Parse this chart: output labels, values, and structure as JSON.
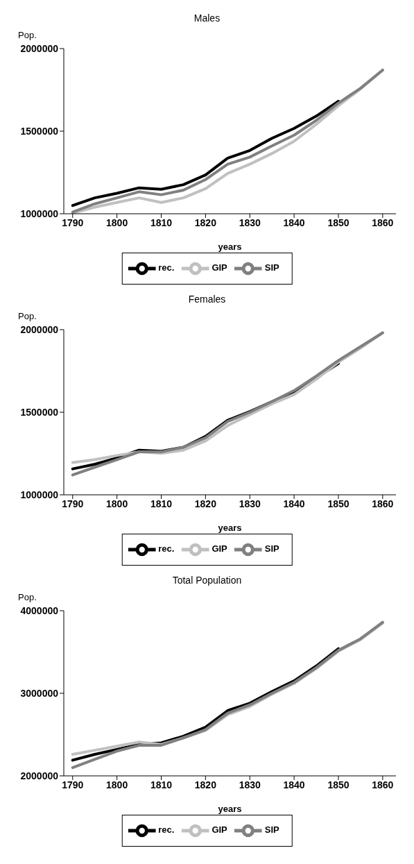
{
  "chart_data": [
    {
      "type": "line",
      "title": "Males",
      "ylabel": "Pop.",
      "xlabel": "years",
      "x": [
        1790,
        1795,
        1800,
        1805,
        1810,
        1815,
        1820,
        1825,
        1830,
        1835,
        1840,
        1845,
        1850,
        1855,
        1860
      ],
      "xlim": [
        1788,
        1863
      ],
      "xticks": [
        1790,
        1800,
        1810,
        1820,
        1830,
        1840,
        1850,
        1860
      ],
      "ylim": [
        1000000,
        2000000
      ],
      "yticks": [
        1000000,
        1500000,
        2000000
      ],
      "grid": false,
      "legend": "bottom",
      "marker": "none",
      "line_style": "solid",
      "series": [
        {
          "name": "rec.",
          "color": "#000000",
          "values": [
            1050000,
            1096000,
            1124000,
            1157000,
            1148000,
            1176000,
            1235000,
            1337000,
            1383000,
            1457000,
            1517000,
            1591000,
            1681000,
            null,
            null
          ]
        },
        {
          "name": "GIP",
          "color": "#c0c0c0",
          "values": [
            1004000,
            1040000,
            1068000,
            1096000,
            1068000,
            1096000,
            1152000,
            1244000,
            1300000,
            1365000,
            1439000,
            1541000,
            1654000,
            1756000,
            1870000
          ]
        },
        {
          "name": "SIP",
          "color": "#808080",
          "values": [
            1010000,
            1060000,
            1096000,
            1133000,
            1115000,
            1143000,
            1207000,
            1300000,
            1343000,
            1411000,
            1476000,
            1565000,
            1670000,
            1760000,
            1870000
          ]
        }
      ]
    },
    {
      "type": "line",
      "title": "Females",
      "ylabel": "Pop.",
      "xlabel": "years",
      "x": [
        1790,
        1795,
        1800,
        1805,
        1810,
        1815,
        1820,
        1825,
        1830,
        1835,
        1840,
        1845,
        1850,
        1855,
        1860
      ],
      "xlim": [
        1788,
        1863
      ],
      "xticks": [
        1790,
        1800,
        1810,
        1820,
        1830,
        1840,
        1850,
        1860
      ],
      "ylim": [
        1000000,
        2000000
      ],
      "yticks": [
        1000000,
        1500000,
        2000000
      ],
      "grid": false,
      "legend": "bottom",
      "marker": "none",
      "line_style": "solid",
      "series": [
        {
          "name": "rec.",
          "color": "#000000",
          "values": [
            1157000,
            1185000,
            1223000,
            1270000,
            1264000,
            1288000,
            1354000,
            1451000,
            1504000,
            1564000,
            1625000,
            1710000,
            1795000,
            null,
            null
          ]
        },
        {
          "name": "GIP",
          "color": "#c0c0c0",
          "values": [
            1195000,
            1213000,
            1238000,
            1260000,
            1251000,
            1270000,
            1326000,
            1419000,
            1485000,
            1551000,
            1607000,
            1700000,
            1803000,
            1888000,
            1981000
          ]
        },
        {
          "name": "SIP",
          "color": "#808080",
          "values": [
            1120000,
            1167000,
            1213000,
            1260000,
            1260000,
            1288000,
            1345000,
            1444000,
            1500000,
            1564000,
            1631000,
            1719000,
            1813000,
            1897000,
            1981000
          ]
        }
      ]
    },
    {
      "type": "line",
      "title": "Total Population",
      "ylabel": "Pop.",
      "xlabel": "years",
      "x": [
        1790,
        1795,
        1800,
        1805,
        1810,
        1815,
        1820,
        1825,
        1830,
        1835,
        1840,
        1845,
        1850,
        1855,
        1860
      ],
      "xlim": [
        1788,
        1863
      ],
      "xticks": [
        1790,
        1800,
        1810,
        1820,
        1830,
        1840,
        1850,
        1860
      ],
      "ylim": [
        2000000,
        4000000
      ],
      "yticks": [
        2000000,
        3000000,
        4000000
      ],
      "grid": false,
      "legend": "bottom",
      "marker": "none",
      "line_style": "solid",
      "series": [
        {
          "name": "rec.",
          "color": "#000000",
          "values": [
            2190000,
            2260000,
            2320000,
            2380000,
            2400000,
            2480000,
            2590000,
            2790000,
            2880000,
            3020000,
            3150000,
            3330000,
            3540000,
            null,
            null
          ]
        },
        {
          "name": "GIP",
          "color": "#c0c0c0",
          "values": [
            2260000,
            2310000,
            2360000,
            2410000,
            2380000,
            2460000,
            2550000,
            2740000,
            2840000,
            2990000,
            3120000,
            3300000,
            3510000,
            3650000,
            3850000
          ]
        },
        {
          "name": "SIP",
          "color": "#808080",
          "values": [
            2100000,
            2200000,
            2300000,
            2370000,
            2370000,
            2460000,
            2560000,
            2760000,
            2860000,
            3000000,
            3130000,
            3310000,
            3520000,
            3660000,
            3860000
          ]
        }
      ]
    }
  ]
}
